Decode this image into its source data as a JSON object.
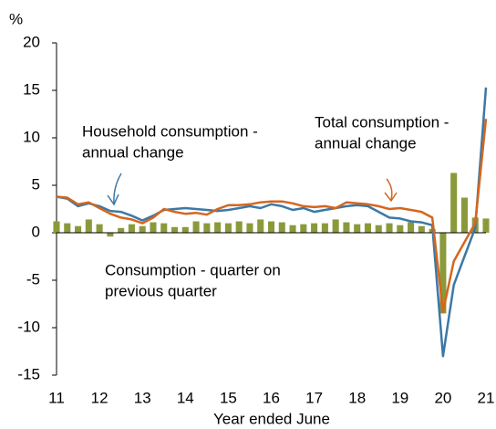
{
  "chart_data": {
    "type": "line",
    "y_unit": "%",
    "x_label": "Year ended June",
    "xlim": [
      11,
      21
    ],
    "xticks": [
      11,
      12,
      13,
      14,
      15,
      16,
      17,
      18,
      19,
      20,
      21
    ],
    "ylim": [
      -15,
      20
    ],
    "yticks": [
      -15,
      -10,
      -5,
      0,
      5,
      10,
      15,
      20
    ],
    "x": [
      11,
      11.25,
      11.5,
      11.75,
      12,
      12.25,
      12.5,
      12.75,
      13,
      13.25,
      13.5,
      13.75,
      14,
      14.25,
      14.5,
      14.75,
      15,
      15.25,
      15.5,
      15.75,
      16,
      16.25,
      16.5,
      16.75,
      17,
      17.25,
      17.5,
      17.75,
      18,
      18.25,
      18.5,
      18.75,
      19,
      19.25,
      19.5,
      19.75,
      20,
      20.25,
      20.5,
      20.75,
      21
    ],
    "series": [
      {
        "name": "Consumption - quarter on previous quarter",
        "kind": "bar",
        "color": "#8a9a3b",
        "values": [
          1.2,
          1.0,
          0.7,
          1.4,
          0.9,
          -0.4,
          0.5,
          0.9,
          0.7,
          1.1,
          1.0,
          0.6,
          0.6,
          1.2,
          1.0,
          1.1,
          1.0,
          1.2,
          1.0,
          1.4,
          1.2,
          1.1,
          0.8,
          0.9,
          1.0,
          1.0,
          1.4,
          1.1,
          0.9,
          1.0,
          0.8,
          1.0,
          0.8,
          1.1,
          0.7,
          0.4,
          -8.5,
          6.3,
          3.7,
          1.6,
          1.5
        ]
      },
      {
        "name": "Household consumption - annual change",
        "kind": "line",
        "color": "#3c78a6",
        "values": [
          3.8,
          3.6,
          2.8,
          3.1,
          2.8,
          2.3,
          2.2,
          1.8,
          1.3,
          1.8,
          2.4,
          2.5,
          2.6,
          2.5,
          2.4,
          2.3,
          2.4,
          2.6,
          2.8,
          2.6,
          3.0,
          2.8,
          2.4,
          2.6,
          2.2,
          2.4,
          2.6,
          2.8,
          2.9,
          2.8,
          2.2,
          1.6,
          1.5,
          1.2,
          1.1,
          0.8,
          -13.0,
          -5.5,
          -2.5,
          0.5,
          15.3
        ]
      },
      {
        "name": "Total consumption - annual change",
        "kind": "line",
        "color": "#d4661e",
        "values": [
          3.8,
          3.7,
          3.0,
          3.2,
          2.6,
          2.0,
          1.6,
          1.4,
          1.0,
          1.6,
          2.5,
          2.2,
          2.0,
          2.1,
          1.9,
          2.5,
          2.9,
          2.9,
          3.0,
          3.2,
          3.3,
          3.3,
          3.1,
          2.8,
          2.7,
          2.8,
          2.6,
          3.2,
          3.1,
          3.0,
          2.8,
          2.5,
          2.6,
          2.4,
          2.2,
          1.6,
          -8.3,
          -3.0,
          -1.0,
          1.0,
          12.0
        ]
      }
    ],
    "annotations": [
      {
        "lines": [
          "Household consumption -",
          "annual change"
        ]
      },
      {
        "lines": [
          "Total consumption -",
          "annual change"
        ]
      },
      {
        "lines": [
          "Consumption - quarter on",
          "previous quarter"
        ]
      }
    ]
  }
}
